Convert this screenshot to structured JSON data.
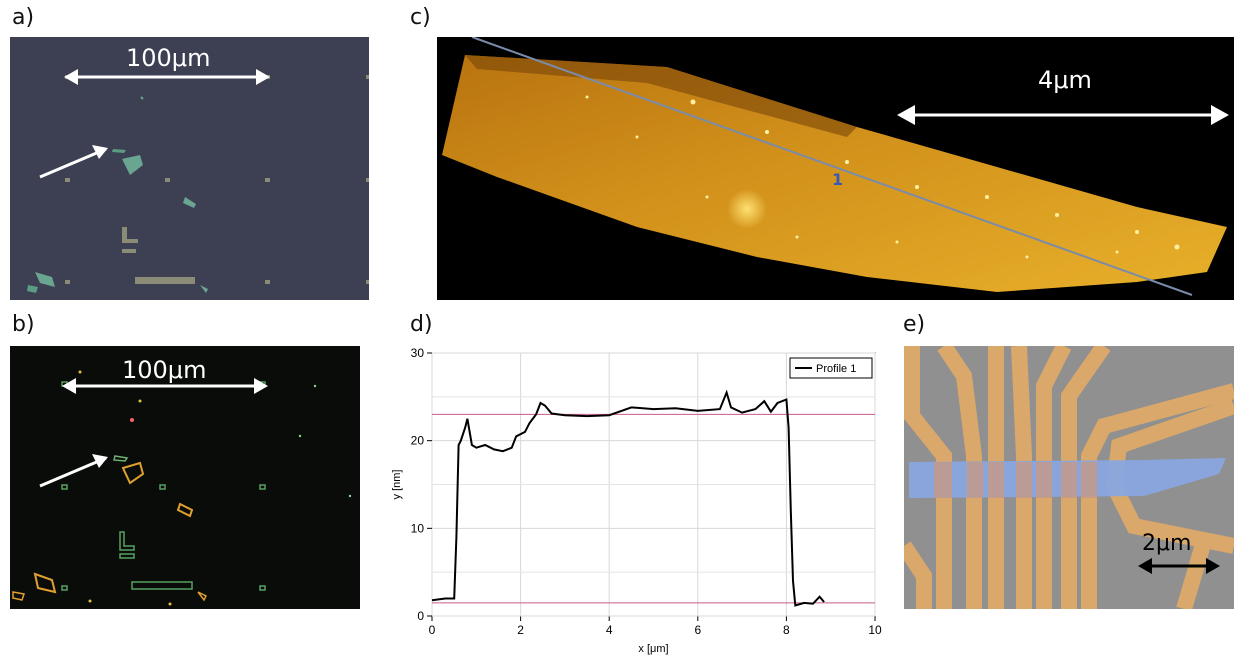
{
  "labels": {
    "a": "a)",
    "b": "b)",
    "c": "c)",
    "d": "d)",
    "e": "e)"
  },
  "scale_bars": {
    "a": "100μm",
    "b": "100μm",
    "c": "4μm",
    "e": "2μm"
  },
  "afm_line_label": "1",
  "chart_data": {
    "type": "line",
    "xlabel": "x [μm]",
    "ylabel": "y [nm]",
    "xlim": [
      0,
      10
    ],
    "ylim": [
      0,
      30
    ],
    "xticks": [
      0,
      2,
      4,
      6,
      8,
      10
    ],
    "yticks": [
      0,
      10,
      20,
      30
    ],
    "grid": true,
    "legend_position": "top-right",
    "series": [
      {
        "name": "Profile 1",
        "color": "#000000",
        "x": [
          0,
          0.3,
          0.5,
          0.55,
          0.6,
          0.65,
          0.75,
          0.8,
          0.9,
          1.0,
          1.2,
          1.4,
          1.6,
          1.8,
          1.9,
          2.1,
          2.2,
          2.35,
          2.45,
          2.55,
          2.7,
          3.0,
          3.5,
          4.0,
          4.5,
          5.0,
          5.5,
          6.0,
          6.5,
          6.65,
          6.75,
          7.0,
          7.3,
          7.5,
          7.65,
          7.8,
          8.0,
          8.05,
          8.1,
          8.15,
          8.2,
          8.4,
          8.6,
          8.75,
          8.85
        ],
        "y": [
          1.8,
          2.0,
          2.0,
          9.0,
          19.5,
          20.0,
          21.5,
          22.5,
          19.5,
          19.2,
          19.5,
          19.0,
          18.8,
          19.2,
          20.5,
          21.0,
          22.0,
          23.0,
          24.3,
          24.0,
          23.1,
          22.9,
          22.8,
          22.9,
          23.8,
          23.6,
          23.7,
          23.4,
          23.6,
          25.5,
          23.8,
          23.2,
          23.6,
          24.5,
          23.3,
          24.3,
          24.7,
          21.5,
          12.0,
          4.0,
          1.2,
          1.5,
          1.4,
          2.2,
          1.6
        ]
      }
    ],
    "reference_lines": [
      23.0,
      1.5
    ]
  }
}
